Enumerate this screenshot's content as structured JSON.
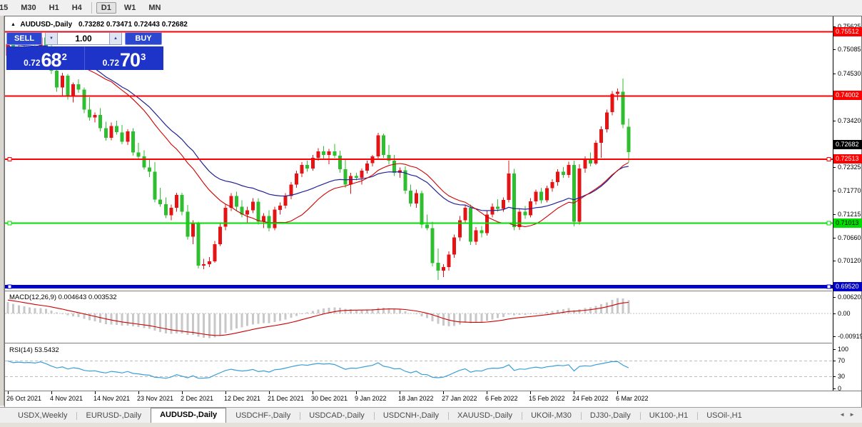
{
  "toolbar": {
    "timeframes": [
      "15",
      "M30",
      "H1",
      "H4",
      "D1",
      "W1",
      "MN"
    ],
    "active": "D1"
  },
  "chart": {
    "title": "AUDUSD-,Daily",
    "ohlc_values": "0.73282 0.73471 0.72443 0.72682",
    "collapse_icon": "▲",
    "macd_label": "MACD(12,26,9) 0.004643 0.003532",
    "rsi_label": "RSI(14) 53.5432"
  },
  "one_click": {
    "sell_label": "SELL",
    "buy_label": "BUY",
    "volume": "1.00",
    "spin_down": "▼",
    "spin_up": "▲",
    "sell_price": {
      "small": "0.72",
      "big": "68",
      "sup": "2"
    },
    "buy_price": {
      "small": "0.72",
      "big": "70",
      "sup": "3"
    }
  },
  "tabs": {
    "items": [
      "USDX,Weekly",
      "EURUSD-,Daily",
      "AUDUSD-,Daily",
      "USDCHF-,Daily",
      "USDCAD-,Daily",
      "USDCNH-,Daily",
      "XAUUSD-,Daily",
      "UKOil-,M30",
      "DJ30-,Daily",
      "UK100-,H1",
      "USOil-,H1"
    ],
    "active_index": 2,
    "scroll_left": "◄",
    "scroll_right": "►"
  },
  "chart_data": {
    "type": "candlestick",
    "symbol": "AUDUSD-",
    "timeframe": "Daily",
    "note_colors": "bull candles red, bear candles green (inverted scheme as shown)",
    "colors": {
      "bull": "#e51414",
      "bear": "#2fbe2f",
      "ma_fast": "#d00000",
      "ma_slow": "#22229a",
      "macd_hist": "#c8c8c8",
      "macd_signal": "#cc0000",
      "rsi_line": "#3a9fd8",
      "level_red": "#ff0000",
      "level_green": "#00dd00",
      "level_blue": "#0000c8",
      "bid_label_bg": "#000000"
    },
    "levels": [
      {
        "value": 0.75512,
        "text": "0.75512",
        "color": "#ff0000",
        "width": 2,
        "label_fg": "#ffffff",
        "handles": false
      },
      {
        "value": 0.74002,
        "text": "0.74002",
        "color": "#ff0000",
        "width": 2,
        "label_fg": "#ffffff",
        "handles": false
      },
      {
        "value": 0.72513,
        "text": "0.72513",
        "color": "#ff0000",
        "width": 2,
        "label_fg": "#ffffff",
        "handles": true
      },
      {
        "value": 0.71013,
        "text": "0.71013",
        "color": "#00dd00",
        "width": 2,
        "label_fg": "#000000",
        "handles": true
      },
      {
        "value": 0.6952,
        "text": "0.69520",
        "color": "#0000c8",
        "width": 5,
        "label_fg": "#ffffff",
        "handles": true
      }
    ],
    "bid_label": {
      "value": 0.72682,
      "text": "0.72682",
      "bg": "#000000",
      "fg": "#ffffff"
    },
    "axes": {
      "price_ticks": [
        "0.75625",
        "0.75085",
        "0.74530",
        "0.73420",
        "0.72865",
        "0.72325",
        "0.71770",
        "0.71215",
        "0.70660",
        "0.70120"
      ],
      "macd_ticks": [
        "0.006201",
        "0.00",
        "-0.00919"
      ],
      "rsi_ticks": [
        "100",
        "70",
        "30",
        "0"
      ],
      "dates": [
        "26 Oct 2021",
        "4 Nov 2021",
        "14 Nov 2021",
        "23 Nov 2021",
        "2 Dec 2021",
        "12 Dec 2021",
        "21 Dec 2021",
        "30 Dec 2021",
        "9 Jan 2022",
        "18 Jan 2022",
        "27 Jan 2022",
        "6 Feb 2022",
        "15 Feb 2022",
        "24 Feb 2022",
        "6 Mar 2022"
      ]
    },
    "indicators": {
      "ma_fast_period": 20,
      "ma_slow_period": 30,
      "macd": {
        "fast": 12,
        "slow": 26,
        "signal": 9,
        "main_value": 0.004643,
        "signal_value": 0.003532
      },
      "rsi": {
        "period": 14,
        "value": 53.5432,
        "upper_level": 70,
        "lower_level": 30
      }
    },
    "candles": [
      [
        0.7495,
        0.7533,
        0.747,
        0.7523
      ],
      [
        0.7523,
        0.7537,
        0.7488,
        0.7491
      ],
      [
        0.7491,
        0.752,
        0.7475,
        0.7512
      ],
      [
        0.7512,
        0.7531,
        0.7495,
        0.7501
      ],
      [
        0.7501,
        0.7512,
        0.7496,
        0.7508
      ],
      [
        0.7508,
        0.7533,
        0.7492,
        0.7498
      ],
      [
        0.7498,
        0.755,
        0.749,
        0.7538
      ],
      [
        0.7538,
        0.7548,
        0.75,
        0.7506
      ],
      [
        0.7506,
        0.7525,
        0.7452,
        0.746
      ],
      [
        0.746,
        0.748,
        0.741,
        0.742
      ],
      [
        0.742,
        0.7455,
        0.74,
        0.7448
      ],
      [
        0.7448,
        0.7452,
        0.7392,
        0.74
      ],
      [
        0.74,
        0.7432,
        0.7385,
        0.7428
      ],
      [
        0.7428,
        0.744,
        0.7408,
        0.7415
      ],
      [
        0.7415,
        0.742,
        0.736,
        0.7368
      ],
      [
        0.7368,
        0.7398,
        0.7342,
        0.735
      ],
      [
        0.735,
        0.7362,
        0.7338,
        0.7356
      ],
      [
        0.7356,
        0.7372,
        0.7317,
        0.7325
      ],
      [
        0.7325,
        0.734,
        0.7295,
        0.7302
      ],
      [
        0.7302,
        0.7338,
        0.7296,
        0.733
      ],
      [
        0.733,
        0.7342,
        0.731,
        0.7315
      ],
      [
        0.7315,
        0.7332,
        0.7287,
        0.7293
      ],
      [
        0.7293,
        0.7322,
        0.7285,
        0.7317
      ],
      [
        0.7317,
        0.7325,
        0.726,
        0.7268
      ],
      [
        0.7268,
        0.729,
        0.725,
        0.7258
      ],
      [
        0.7258,
        0.7273,
        0.7227,
        0.7232
      ],
      [
        0.7232,
        0.725,
        0.721,
        0.7222
      ],
      [
        0.7222,
        0.7245,
        0.715,
        0.7157
      ],
      [
        0.7157,
        0.7185,
        0.714,
        0.7146
      ],
      [
        0.7146,
        0.7162,
        0.7113,
        0.712
      ],
      [
        0.712,
        0.7145,
        0.7108,
        0.7138
      ],
      [
        0.7138,
        0.7173,
        0.7128,
        0.7168
      ],
      [
        0.7168,
        0.7173,
        0.712,
        0.7128
      ],
      [
        0.7128,
        0.7144,
        0.7063,
        0.707
      ],
      [
        0.707,
        0.7108,
        0.7052,
        0.71
      ],
      [
        0.71,
        0.7105,
        0.6995,
        0.7002
      ],
      [
        0.7002,
        0.7018,
        0.6993,
        0.7005
      ],
      [
        0.7005,
        0.7022,
        0.6998,
        0.7012
      ],
      [
        0.7012,
        0.706,
        0.7008,
        0.7052
      ],
      [
        0.7052,
        0.71,
        0.7048,
        0.7093
      ],
      [
        0.7093,
        0.7145,
        0.7085,
        0.7138
      ],
      [
        0.7138,
        0.7172,
        0.713,
        0.7165
      ],
      [
        0.7165,
        0.7175,
        0.7132,
        0.714
      ],
      [
        0.714,
        0.7155,
        0.7115,
        0.7122
      ],
      [
        0.7122,
        0.714,
        0.71,
        0.7132
      ],
      [
        0.7132,
        0.716,
        0.7125,
        0.7152
      ],
      [
        0.7152,
        0.716,
        0.7098,
        0.7105
      ],
      [
        0.7105,
        0.7125,
        0.709,
        0.7118
      ],
      [
        0.7118,
        0.7132,
        0.7082,
        0.709
      ],
      [
        0.709,
        0.714,
        0.7085,
        0.7133
      ],
      [
        0.7133,
        0.715,
        0.7122,
        0.7143
      ],
      [
        0.7143,
        0.7172,
        0.7136,
        0.7165
      ],
      [
        0.7165,
        0.7198,
        0.7158,
        0.7192
      ],
      [
        0.7192,
        0.7225,
        0.7185,
        0.7218
      ],
      [
        0.7218,
        0.7245,
        0.721,
        0.7238
      ],
      [
        0.7238,
        0.7248,
        0.7222,
        0.723
      ],
      [
        0.723,
        0.7262,
        0.7225,
        0.7255
      ],
      [
        0.7255,
        0.7278,
        0.7248,
        0.727
      ],
      [
        0.727,
        0.7283,
        0.7252,
        0.7262
      ],
      [
        0.7262,
        0.7276,
        0.724,
        0.727
      ],
      [
        0.727,
        0.7288,
        0.7255,
        0.726
      ],
      [
        0.726,
        0.7272,
        0.722,
        0.7228
      ],
      [
        0.7228,
        0.725,
        0.7185,
        0.7192
      ],
      [
        0.7192,
        0.722,
        0.717,
        0.7212
      ],
      [
        0.7212,
        0.722,
        0.7202,
        0.7208
      ],
      [
        0.7208,
        0.723,
        0.7192,
        0.7225
      ],
      [
        0.7225,
        0.7248,
        0.7218,
        0.7242
      ],
      [
        0.7242,
        0.7262,
        0.7235,
        0.7258
      ],
      [
        0.7258,
        0.7314,
        0.7252,
        0.7308
      ],
      [
        0.7308,
        0.7312,
        0.7255,
        0.7262
      ],
      [
        0.7262,
        0.7285,
        0.724,
        0.7248
      ],
      [
        0.7248,
        0.7262,
        0.7212,
        0.722
      ],
      [
        0.722,
        0.7232,
        0.7208,
        0.7226
      ],
      [
        0.7226,
        0.7235,
        0.717,
        0.7178
      ],
      [
        0.7178,
        0.7192,
        0.714,
        0.7148
      ],
      [
        0.7148,
        0.718,
        0.7138,
        0.7172
      ],
      [
        0.7172,
        0.7178,
        0.709,
        0.7098
      ],
      [
        0.7098,
        0.7122,
        0.7085,
        0.709
      ],
      [
        0.709,
        0.7105,
        0.7,
        0.7008
      ],
      [
        0.7008,
        0.7042,
        0.6968,
        0.699
      ],
      [
        0.699,
        0.7005,
        0.6975,
        0.6998
      ],
      [
        0.6998,
        0.7035,
        0.699,
        0.7028
      ],
      [
        0.7028,
        0.7075,
        0.702,
        0.7068
      ],
      [
        0.7068,
        0.7118,
        0.706,
        0.7108
      ],
      [
        0.7108,
        0.7145,
        0.71,
        0.7138
      ],
      [
        0.7138,
        0.7145,
        0.705,
        0.7058
      ],
      [
        0.7058,
        0.7092,
        0.705,
        0.7085
      ],
      [
        0.7085,
        0.7095,
        0.7068,
        0.7078
      ],
      [
        0.7078,
        0.713,
        0.7072,
        0.7122
      ],
      [
        0.7122,
        0.7148,
        0.7115,
        0.714
      ],
      [
        0.714,
        0.7158,
        0.7128,
        0.7135
      ],
      [
        0.7135,
        0.7162,
        0.7128,
        0.7156
      ],
      [
        0.7156,
        0.7248,
        0.715,
        0.7218
      ],
      [
        0.7218,
        0.7229,
        0.7085,
        0.7092
      ],
      [
        0.7092,
        0.7135,
        0.7086,
        0.7128
      ],
      [
        0.7128,
        0.7142,
        0.7112,
        0.712
      ],
      [
        0.712,
        0.716,
        0.7115,
        0.7153
      ],
      [
        0.7153,
        0.718,
        0.7145,
        0.7175
      ],
      [
        0.7175,
        0.7185,
        0.7148,
        0.7155
      ],
      [
        0.7155,
        0.719,
        0.715,
        0.7184
      ],
      [
        0.7184,
        0.7205,
        0.7175,
        0.7198
      ],
      [
        0.7198,
        0.7228,
        0.719,
        0.7222
      ],
      [
        0.7222,
        0.7233,
        0.7208,
        0.7215
      ],
      [
        0.7215,
        0.7246,
        0.7208,
        0.7238
      ],
      [
        0.7238,
        0.7248,
        0.7094,
        0.7105
      ],
      [
        0.7105,
        0.724,
        0.7098,
        0.723
      ],
      [
        0.723,
        0.7258,
        0.722,
        0.725
      ],
      [
        0.725,
        0.7268,
        0.7235,
        0.7242
      ],
      [
        0.7242,
        0.7296,
        0.7238,
        0.729
      ],
      [
        0.729,
        0.7329,
        0.7255,
        0.7322
      ],
      [
        0.7322,
        0.7368,
        0.7315,
        0.7362
      ],
      [
        0.7362,
        0.7412,
        0.7355,
        0.7405
      ],
      [
        0.7405,
        0.7418,
        0.739,
        0.741
      ],
      [
        0.741,
        0.7441,
        0.7325,
        0.7333
      ],
      [
        0.73282,
        0.73471,
        0.72443,
        0.72682
      ]
    ]
  }
}
